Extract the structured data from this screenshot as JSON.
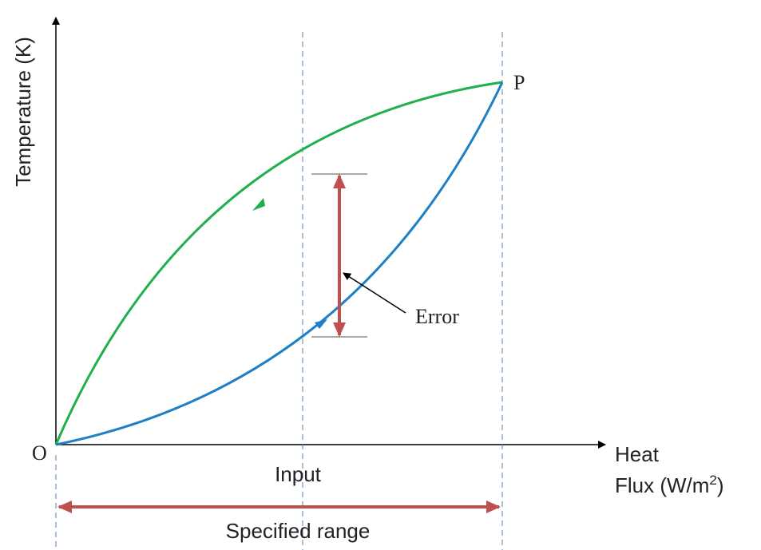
{
  "y_axis_label": "Temperature (K)",
  "x_axis_label": {
    "line1": "Heat",
    "line2_main": "Flux (W/m",
    "line2_sup": "2",
    "line2_end": ")"
  },
  "origin_label": "O",
  "point_label": "P",
  "input_label": "Input",
  "range_label": "Specified range",
  "error_label": "Error"
}
